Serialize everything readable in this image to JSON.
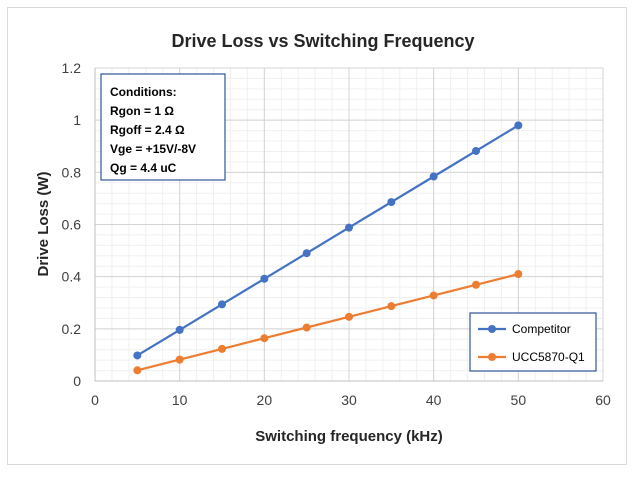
{
  "chart_data": {
    "type": "line",
    "title": "Drive Loss vs Switching Frequency",
    "xlabel": "Switching frequency (kHz)",
    "ylabel": "Drive Loss (W)",
    "xlim": [
      0,
      60
    ],
    "ylim": [
      0,
      1.2
    ],
    "xticks": [
      "0",
      "10",
      "20",
      "30",
      "40",
      "50",
      "60"
    ],
    "yticks": [
      "0",
      "0.2",
      "0.4",
      "0.6",
      "0.8",
      "1",
      "1.2"
    ],
    "grid": true,
    "legend_position": "bottom-right",
    "x": [
      5,
      10,
      15,
      20,
      25,
      30,
      35,
      40,
      45,
      50
    ],
    "series": [
      {
        "name": "Competitor",
        "color": "#4472C4",
        "values": [
          0.098,
          0.196,
          0.294,
          0.392,
          0.49,
          0.588,
          0.686,
          0.784,
          0.882,
          0.98
        ]
      },
      {
        "name": "UCC5870-Q1",
        "color": "#ED7D31",
        "values": [
          0.041,
          0.082,
          0.123,
          0.164,
          0.205,
          0.246,
          0.287,
          0.328,
          0.369,
          0.41
        ]
      }
    ],
    "annotation": {
      "lines": [
        "Conditions:",
        "Rgon = 1 Ω",
        "Rgoff = 2.4 Ω",
        "Vge = +15V/-8V",
        "Qg = 4.4 uC"
      ]
    }
  }
}
